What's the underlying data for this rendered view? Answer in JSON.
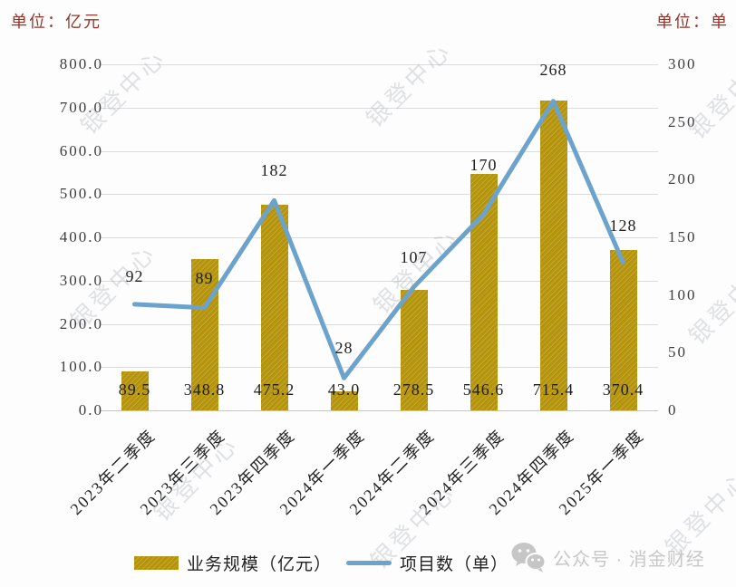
{
  "units": {
    "left": "单位：亿元",
    "right": "单位：单"
  },
  "watermark": {
    "text": "银登中心"
  },
  "legend": [
    {
      "label": "业务规模（亿元）",
      "type": "bar",
      "color": "#B8960C"
    },
    {
      "label": "项目数（单）",
      "type": "line",
      "color": "#6BA3CD"
    }
  ],
  "footer": {
    "wechat_label": "公众号 · 消金财经"
  },
  "chart_data": {
    "type": "bar",
    "subtype": "bar-line-combo",
    "categories": [
      "2023年二季度",
      "2023年三季度",
      "2023年四季度",
      "2024年一季度",
      "2024年二季度",
      "2024年三季度",
      "2024年四季度",
      "2025年一季度"
    ],
    "series": [
      {
        "name": "业务规模（亿元）",
        "type": "bar",
        "axis": "left",
        "color": "#B8960C",
        "values": [
          89.5,
          348.8,
          475.2,
          43.0,
          278.5,
          546.6,
          715.4,
          370.4
        ]
      },
      {
        "name": "项目数（单）",
        "type": "line",
        "axis": "right",
        "color": "#6BA3CD",
        "values": [
          92,
          89,
          182,
          28,
          107,
          170,
          268,
          128
        ]
      }
    ],
    "left_axis": {
      "title": "单位：亿元",
      "min": 0,
      "max": 800,
      "step": 100,
      "tick_labels": [
        "800.0",
        "700.0",
        "600.0",
        "500.0",
        "400.0",
        "300.0",
        "200.0",
        "100.0",
        "0.0"
      ]
    },
    "right_axis": {
      "title": "单位：单",
      "min": 0,
      "max": 300,
      "step": 50,
      "tick_labels": [
        "300",
        "250",
        "200",
        "150",
        "100",
        "50",
        "0"
      ]
    },
    "grid": true,
    "legend_position": "bottom",
    "data_labels": true
  }
}
